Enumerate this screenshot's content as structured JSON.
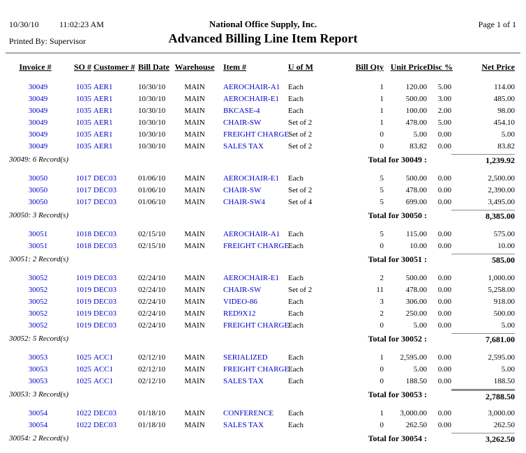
{
  "colors": {
    "link_blue": "#0000cd",
    "rule_gray": "#8c8c8c",
    "header_rule_gray": "#a6a6a6"
  },
  "header": {
    "date": "10/30/10",
    "time": "11:02:23 AM",
    "company": "National Office Supply, Inc.",
    "page_label": "Page 1 of 1",
    "printed_by": "Printed By: Supervisor",
    "title": "Advanced Billing Line Item Report"
  },
  "table": {
    "columns": [
      "Invoice #",
      "SO #",
      "Customer #",
      "Bill Date",
      "Warehouse",
      "Item #",
      "U of M",
      "Bill Qty",
      "Unit Price",
      "Disc %",
      "Net Price"
    ],
    "sections": [
      {
        "invoice": "30049",
        "record_label": "30049: 6 Record(s)",
        "total_label": "Total for 30049 :",
        "total": "1,239.92",
        "rule": "thin",
        "rows": [
          {
            "invoice": "30049",
            "so": "1035",
            "customer": "AER1",
            "bill_date": "10/30/10",
            "warehouse": "MAIN",
            "item": "AEROCHAIR-A1",
            "uofm": "Each",
            "qty": "1",
            "unit_price": "120.00",
            "disc": "5.00",
            "net": "114.00"
          },
          {
            "invoice": "30049",
            "so": "1035",
            "customer": "AER1",
            "bill_date": "10/30/10",
            "warehouse": "MAIN",
            "item": "AEROCHAIR-E1",
            "uofm": "Each",
            "qty": "1",
            "unit_price": "500.00",
            "disc": "3.00",
            "net": "485.00"
          },
          {
            "invoice": "30049",
            "so": "1035",
            "customer": "AER1",
            "bill_date": "10/30/10",
            "warehouse": "MAIN",
            "item": "BKCASE-4",
            "uofm": "Each",
            "qty": "1",
            "unit_price": "100.00",
            "disc": "2.00",
            "net": "98.00"
          },
          {
            "invoice": "30049",
            "so": "1035",
            "customer": "AER1",
            "bill_date": "10/30/10",
            "warehouse": "MAIN",
            "item": "CHAIR-SW",
            "uofm": "Set of 2",
            "qty": "1",
            "unit_price": "478.00",
            "disc": "5.00",
            "net": "454.10"
          },
          {
            "invoice": "30049",
            "so": "1035",
            "customer": "AER1",
            "bill_date": "10/30/10",
            "warehouse": "MAIN",
            "item": "FREIGHT CHARGE",
            "uofm": "Set of 2",
            "qty": "0",
            "unit_price": "5.00",
            "disc": "0.00",
            "net": "5.00"
          },
          {
            "invoice": "30049",
            "so": "1035",
            "customer": "AER1",
            "bill_date": "10/30/10",
            "warehouse": "MAIN",
            "item": "SALES TAX",
            "uofm": "Set of 2",
            "qty": "0",
            "unit_price": "83.82",
            "disc": "0.00",
            "net": "83.82"
          }
        ]
      },
      {
        "invoice": "30050",
        "record_label": "30050: 3 Record(s)",
        "total_label": "Total for 30050 :",
        "total": "8,385.00",
        "rule": "thin",
        "rows": [
          {
            "invoice": "30050",
            "so": "1017",
            "customer": "DEC03",
            "bill_date": "01/06/10",
            "warehouse": "MAIN",
            "item": "AEROCHAIR-E1",
            "uofm": "Each",
            "qty": "5",
            "unit_price": "500.00",
            "disc": "0.00",
            "net": "2,500.00"
          },
          {
            "invoice": "30050",
            "so": "1017",
            "customer": "DEC03",
            "bill_date": "01/06/10",
            "warehouse": "MAIN",
            "item": "CHAIR-SW",
            "uofm": "Set of 2",
            "qty": "5",
            "unit_price": "478.00",
            "disc": "0.00",
            "net": "2,390.00"
          },
          {
            "invoice": "30050",
            "so": "1017",
            "customer": "DEC03",
            "bill_date": "01/06/10",
            "warehouse": "MAIN",
            "item": "CHAIR-SW4",
            "uofm": "Set of 4",
            "qty": "5",
            "unit_price": "699.00",
            "disc": "0.00",
            "net": "3,495.00"
          }
        ]
      },
      {
        "invoice": "30051",
        "record_label": "30051: 2 Record(s)",
        "total_label": "Total for 30051 :",
        "total": "585.00",
        "rule": "thin",
        "rows": [
          {
            "invoice": "30051",
            "so": "1018",
            "customer": "DEC03",
            "bill_date": "02/15/10",
            "warehouse": "MAIN",
            "item": "AEROCHAIR-A1",
            "uofm": "Each",
            "qty": "5",
            "unit_price": "115.00",
            "disc": "0.00",
            "net": "575.00"
          },
          {
            "invoice": "30051",
            "so": "1018",
            "customer": "DEC03",
            "bill_date": "02/15/10",
            "warehouse": "MAIN",
            "item": "FREIGHT CHARGE",
            "uofm": "Each",
            "qty": "0",
            "unit_price": "10.00",
            "disc": "0.00",
            "net": "10.00"
          }
        ]
      },
      {
        "invoice": "30052",
        "record_label": "30052: 5 Record(s)",
        "total_label": "Total for 30052 :",
        "total": "7,681.00",
        "rule": "thin",
        "rows": [
          {
            "invoice": "30052",
            "so": "1019",
            "customer": "DEC03",
            "bill_date": "02/24/10",
            "warehouse": "MAIN",
            "item": "AEROCHAIR-E1",
            "uofm": "Each",
            "qty": "2",
            "unit_price": "500.00",
            "disc": "0.00",
            "net": "1,000.00"
          },
          {
            "invoice": "30052",
            "so": "1019",
            "customer": "DEC03",
            "bill_date": "02/24/10",
            "warehouse": "MAIN",
            "item": "CHAIR-SW",
            "uofm": "Set of 2",
            "qty": "11",
            "unit_price": "478.00",
            "disc": "0.00",
            "net": "5,258.00"
          },
          {
            "invoice": "30052",
            "so": "1019",
            "customer": "DEC03",
            "bill_date": "02/24/10",
            "warehouse": "MAIN",
            "item": "VIDEO-86",
            "uofm": "Each",
            "qty": "3",
            "unit_price": "306.00",
            "disc": "0.00",
            "net": "918.00"
          },
          {
            "invoice": "30052",
            "so": "1019",
            "customer": "DEC03",
            "bill_date": "02/24/10",
            "warehouse": "MAIN",
            "item": "RED9X12",
            "uofm": "Each",
            "qty": "2",
            "unit_price": "250.00",
            "disc": "0.00",
            "net": "500.00"
          },
          {
            "invoice": "30052",
            "so": "1019",
            "customer": "DEC03",
            "bill_date": "02/24/10",
            "warehouse": "MAIN",
            "item": "FREIGHT CHARGE",
            "uofm": "Each",
            "qty": "0",
            "unit_price": "5.00",
            "disc": "0.00",
            "net": "5.00"
          }
        ]
      },
      {
        "invoice": "30053",
        "record_label": "30053: 3 Record(s)",
        "total_label": "Total for 30053 :",
        "total": "2,788.50",
        "rule": "thick",
        "rows": [
          {
            "invoice": "30053",
            "so": "1025",
            "customer": "ACC1",
            "bill_date": "02/12/10",
            "warehouse": "MAIN",
            "item": "SERIALIZED",
            "uofm": "Each",
            "qty": "1",
            "unit_price": "2,595.00",
            "disc": "0.00",
            "net": "2,595.00"
          },
          {
            "invoice": "30053",
            "so": "1025",
            "customer": "ACC1",
            "bill_date": "02/12/10",
            "warehouse": "MAIN",
            "item": "FREIGHT CHARGE",
            "uofm": "Each",
            "qty": "0",
            "unit_price": "5.00",
            "disc": "0.00",
            "net": "5.00"
          },
          {
            "invoice": "30053",
            "so": "1025",
            "customer": "ACC1",
            "bill_date": "02/12/10",
            "warehouse": "MAIN",
            "item": "SALES TAX",
            "uofm": "Each",
            "qty": "0",
            "unit_price": "188.50",
            "disc": "0.00",
            "net": "188.50"
          }
        ]
      },
      {
        "invoice": "30054",
        "record_label": "30054: 2 Record(s)",
        "total_label": "Total for 30054 :",
        "total": "3,262.50",
        "rule": "thin",
        "rows": [
          {
            "invoice": "30054",
            "so": "1022",
            "customer": "DEC03",
            "bill_date": "01/18/10",
            "warehouse": "MAIN",
            "item": "CONFERENCE",
            "uofm": "Each",
            "qty": "1",
            "unit_price": "3,000.00",
            "disc": "0.00",
            "net": "3,000.00"
          },
          {
            "invoice": "30054",
            "so": "1022",
            "customer": "DEC03",
            "bill_date": "01/18/10",
            "warehouse": "MAIN",
            "item": "SALES TAX",
            "uofm": "Each",
            "qty": "0",
            "unit_price": "262.50",
            "disc": "0.00",
            "net": "262.50"
          }
        ]
      }
    ]
  }
}
